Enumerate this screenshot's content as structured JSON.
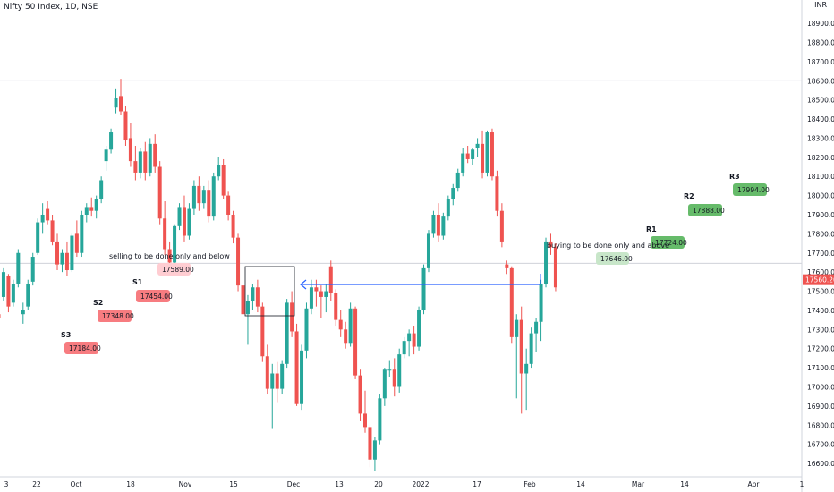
{
  "header": {
    "symbol": "Nifty 50 Index, 1D, NSE",
    "currency": "INR"
  },
  "chart_data": {
    "type": "candlestick",
    "title": "Nifty 50 Index, 1D, NSE",
    "ylim": [
      16530,
      18980
    ],
    "y_ticks": [
      16600,
      16700,
      16800,
      16900,
      17000,
      17100,
      17200,
      17300,
      17400,
      17500,
      17600,
      17700,
      17800,
      17900,
      18000,
      18100,
      18200,
      18300,
      18400,
      18500,
      18600,
      18700,
      18800,
      18900
    ],
    "x_ticks": [
      "3",
      "22",
      "Oct",
      "18",
      "Nov",
      "15",
      "Dec",
      "13",
      "20",
      "2022",
      "17",
      "Feb",
      "14",
      "Mar",
      "14",
      "Apr",
      "1"
    ],
    "last_price": "17560.20",
    "up_color": "#26a69a",
    "down_color": "#ef5350",
    "candles": [
      [
        17380,
        17420,
        17350,
        17360
      ],
      [
        17470,
        17620,
        17450,
        17600
      ],
      [
        17580,
        17590,
        17390,
        17420
      ],
      [
        17440,
        17560,
        17420,
        17540
      ],
      [
        17540,
        17720,
        17520,
        17700
      ],
      [
        17380,
        17440,
        17330,
        17400
      ],
      [
        17420,
        17560,
        17400,
        17540
      ],
      [
        17550,
        17700,
        17530,
        17680
      ],
      [
        17700,
        17880,
        17690,
        17860
      ],
      [
        17860,
        17960,
        17800,
        17900
      ],
      [
        17930,
        17970,
        17850,
        17870
      ],
      [
        17870,
        17900,
        17740,
        17760
      ],
      [
        17760,
        17800,
        17610,
        17640
      ],
      [
        17640,
        17720,
        17600,
        17700
      ],
      [
        17700,
        17760,
        17580,
        17610
      ],
      [
        17610,
        17800,
        17600,
        17790
      ],
      [
        17800,
        17870,
        17680,
        17700
      ],
      [
        17700,
        17920,
        17680,
        17900
      ],
      [
        17900,
        17960,
        17860,
        17940
      ],
      [
        17940,
        17990,
        17890,
        17920
      ],
      [
        17920,
        18000,
        17880,
        17980
      ],
      [
        17980,
        18100,
        17960,
        18080
      ],
      [
        18180,
        18260,
        18130,
        18240
      ],
      [
        18240,
        18350,
        18220,
        18330
      ],
      [
        18460,
        18560,
        18430,
        18510
      ],
      [
        18520,
        18610,
        18420,
        18440
      ],
      [
        18440,
        18470,
        18260,
        18290
      ],
      [
        18300,
        18380,
        18150,
        18180
      ],
      [
        18180,
        18260,
        18080,
        18120
      ],
      [
        18120,
        18250,
        18090,
        18230
      ],
      [
        18230,
        18280,
        18080,
        18120
      ],
      [
        18120,
        18300,
        18100,
        18270
      ],
      [
        18270,
        18320,
        18120,
        18150
      ],
      [
        18150,
        18180,
        17850,
        17880
      ],
      [
        17880,
        17970,
        17690,
        17720
      ],
      [
        17720,
        17760,
        17590,
        17650
      ],
      [
        17650,
        17850,
        17620,
        17840
      ],
      [
        17840,
        17960,
        17820,
        17940
      ],
      [
        17940,
        18000,
        17760,
        17790
      ],
      [
        17790,
        17960,
        17770,
        17930
      ],
      [
        17930,
        18080,
        17900,
        18050
      ],
      [
        18050,
        18100,
        17920,
        17960
      ],
      [
        17960,
        18050,
        17930,
        18030
      ],
      [
        18030,
        18080,
        17860,
        17890
      ],
      [
        17890,
        18120,
        17870,
        18100
      ],
      [
        18100,
        18200,
        18080,
        18160
      ],
      [
        18160,
        18190,
        17980,
        18000
      ],
      [
        18000,
        18020,
        17870,
        17900
      ],
      [
        17900,
        17920,
        17750,
        17780
      ],
      [
        17780,
        17800,
        17500,
        17530
      ],
      [
        17530,
        17560,
        17330,
        17380
      ],
      [
        17380,
        17480,
        17220,
        17450
      ],
      [
        17450,
        17540,
        17400,
        17520
      ],
      [
        17520,
        17560,
        17390,
        17420
      ],
      [
        17420,
        17440,
        17130,
        17160
      ],
      [
        17160,
        17220,
        16960,
        16990
      ],
      [
        16990,
        17120,
        16780,
        17070
      ],
      [
        17070,
        17130,
        16920,
        16990
      ],
      [
        16990,
        17140,
        16960,
        17120
      ],
      [
        17120,
        17460,
        17100,
        17440
      ],
      [
        17440,
        17500,
        17260,
        17290
      ],
      [
        17290,
        17330,
        16900,
        16910
      ],
      [
        16910,
        17220,
        16880,
        17190
      ],
      [
        17190,
        17440,
        17150,
        17410
      ],
      [
        17410,
        17560,
        17380,
        17520
      ],
      [
        17520,
        17560,
        17420,
        17500
      ],
      [
        17500,
        17530,
        17360,
        17470
      ],
      [
        17470,
        17540,
        17390,
        17500
      ],
      [
        17630,
        17660,
        17450,
        17490
      ],
      [
        17490,
        17510,
        17320,
        17350
      ],
      [
        17350,
        17400,
        17260,
        17300
      ],
      [
        17300,
        17340,
        17200,
        17230
      ],
      [
        17230,
        17440,
        17210,
        17410
      ],
      [
        17410,
        17420,
        17040,
        17060
      ],
      [
        17060,
        17090,
        16820,
        16860
      ],
      [
        16860,
        16980,
        16760,
        16790
      ],
      [
        16790,
        16800,
        16580,
        16620
      ],
      [
        16620,
        16740,
        16560,
        16720
      ],
      [
        16720,
        16960,
        16700,
        16940
      ],
      [
        16940,
        17100,
        16900,
        17090
      ],
      [
        17090,
        17140,
        17050,
        17090
      ],
      [
        17090,
        17150,
        16950,
        17000
      ],
      [
        17000,
        17200,
        16970,
        17170
      ],
      [
        17170,
        17260,
        17150,
        17240
      ],
      [
        17240,
        17300,
        17160,
        17280
      ],
      [
        17280,
        17320,
        17170,
        17210
      ],
      [
        17210,
        17420,
        17190,
        17400
      ],
      [
        17400,
        17640,
        17380,
        17620
      ],
      [
        17620,
        17820,
        17600,
        17800
      ],
      [
        17800,
        17920,
        17780,
        17900
      ],
      [
        17900,
        17960,
        17760,
        17790
      ],
      [
        17790,
        17910,
        17770,
        17890
      ],
      [
        17890,
        18000,
        17870,
        17980
      ],
      [
        17980,
        18060,
        17950,
        18040
      ],
      [
        18040,
        18140,
        18020,
        18120
      ],
      [
        18120,
        18250,
        18100,
        18220
      ],
      [
        18220,
        18260,
        18170,
        18190
      ],
      [
        18190,
        18250,
        18160,
        18240
      ],
      [
        18250,
        18300,
        18200,
        18270
      ],
      [
        18270,
        18340,
        18090,
        18120
      ],
      [
        18120,
        18340,
        18100,
        18330
      ],
      [
        18330,
        18350,
        18080,
        18100
      ],
      [
        18100,
        18130,
        17890,
        17920
      ],
      [
        17920,
        17960,
        17730,
        17760
      ],
      [
        17640,
        17660,
        17590,
        17620
      ],
      [
        17620,
        17630,
        17230,
        17260
      ],
      [
        17260,
        17380,
        16940,
        17350
      ],
      [
        17350,
        17420,
        16860,
        17070
      ],
      [
        17070,
        17200,
        16880,
        17120
      ],
      [
        17120,
        17310,
        17100,
        17280
      ],
      [
        17280,
        17360,
        17180,
        17340
      ],
      [
        17340,
        17560,
        17240,
        17540
      ],
      [
        17540,
        17780,
        17520,
        17760
      ],
      [
        17760,
        17800,
        17690,
        17730
      ],
      [
        17730,
        17750,
        17500,
        17520
      ]
    ],
    "levels": [
      {
        "label": "R3",
        "price": "17994.00",
        "kind": "resistance"
      },
      {
        "label": "R2",
        "price": "17888.00",
        "kind": "resistance"
      },
      {
        "label": "R1",
        "price": "17724.00",
        "kind": "resistance"
      },
      {
        "label": "S1",
        "price": "17454.00",
        "kind": "support"
      },
      {
        "label": "S2",
        "price": "17348.00",
        "kind": "support"
      },
      {
        "label": "S3",
        "price": "17184.00",
        "kind": "support"
      }
    ],
    "buy_label": {
      "text": "buying to be done only and above",
      "price": "17646.00"
    },
    "sell_label": {
      "text": "selling to be done only and below",
      "price": "17589.00"
    },
    "h_lines": [
      18600,
      17646
    ]
  }
}
